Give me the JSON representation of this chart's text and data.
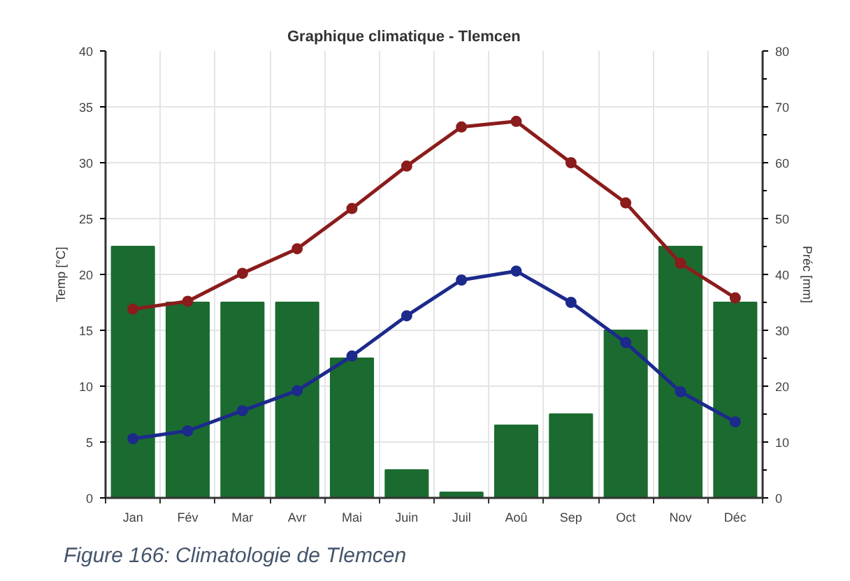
{
  "chart_data": {
    "type": "bar",
    "title": "Graphique climatique - Tlemcen",
    "ylabel": "Temp [°C]",
    "y2label": "Préc [mm]",
    "annotations": [
      "Figure 166: Climatologie de Tlemcen"
    ],
    "categories": [
      "Jan",
      "Fév",
      "Mar",
      "Avr",
      "Mai",
      "Juin",
      "Juil",
      "Aoû",
      "Sep",
      "Oct",
      "Nov",
      "Déc"
    ],
    "series": [
      {
        "axis": "y2",
        "color": "#1b6b30",
        "values": [
          45,
          35,
          35,
          35,
          25,
          5,
          1,
          13,
          15,
          30,
          45,
          35
        ]
      },
      {
        "type": "line",
        "color": "#8b1c1c",
        "values": [
          16.9,
          17.6,
          20.1,
          22.3,
          25.9,
          29.7,
          33.2,
          33.7,
          30.0,
          26.4,
          21.0,
          17.9
        ]
      },
      {
        "type": "line",
        "color": "#1c2a8c",
        "values": [
          5.3,
          6.0,
          7.8,
          9.6,
          12.7,
          16.3,
          19.5,
          20.3,
          17.5,
          13.9,
          9.5,
          6.8
        ]
      }
    ],
    "ylim": [
      0,
      40
    ],
    "yticks": [
      0,
      5,
      10,
      15,
      20,
      25,
      30,
      35,
      40
    ],
    "y2lim": [
      0,
      80
    ],
    "y2ticks": [
      0,
      10,
      20,
      30,
      40,
      50,
      60,
      70,
      80
    ],
    "grid": true,
    "marker": "circle",
    "line_style": "solid"
  }
}
